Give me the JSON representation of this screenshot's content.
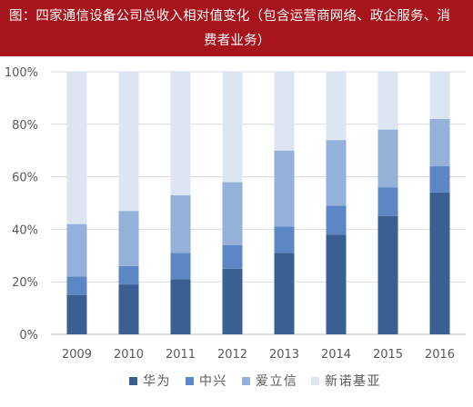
{
  "figure": {
    "title_line1": "图：四家通信设备公司总收入相对值变化（包含运营商网络、政企服务、消",
    "title_line2": "费者业务）"
  },
  "colors": {
    "title_bg": "#a8141c",
    "title_text": "#ffffff",
    "axis_text": "#595959",
    "gridline": "#d9d9d9"
  },
  "chart_data": {
    "type": "bar",
    "stacked": true,
    "percent_stacked": true,
    "categories": [
      "2009",
      "2010",
      "2011",
      "2012",
      "2013",
      "2014",
      "2015",
      "2016"
    ],
    "series": [
      {
        "name": "华为",
        "color": "#3a5f93",
        "values": [
          15,
          19,
          21,
          25,
          31,
          38,
          45,
          54
        ]
      },
      {
        "name": "中兴",
        "color": "#5d87c4",
        "values": [
          7,
          7,
          10,
          9,
          10,
          11,
          11,
          10
        ]
      },
      {
        "name": "爱立信",
        "color": "#93b1d9",
        "values": [
          20,
          21,
          22,
          24,
          29,
          25,
          22,
          18
        ]
      },
      {
        "name": "新诺基亚",
        "color": "#dce6f3",
        "values": [
          58,
          53,
          47,
          42,
          30,
          26,
          22,
          18
        ]
      }
    ],
    "ylim": [
      0,
      100
    ],
    "yticks": [
      "0%",
      "20%",
      "40%",
      "60%",
      "80%",
      "100%"
    ],
    "grid": true,
    "legend_position": "bottom"
  }
}
